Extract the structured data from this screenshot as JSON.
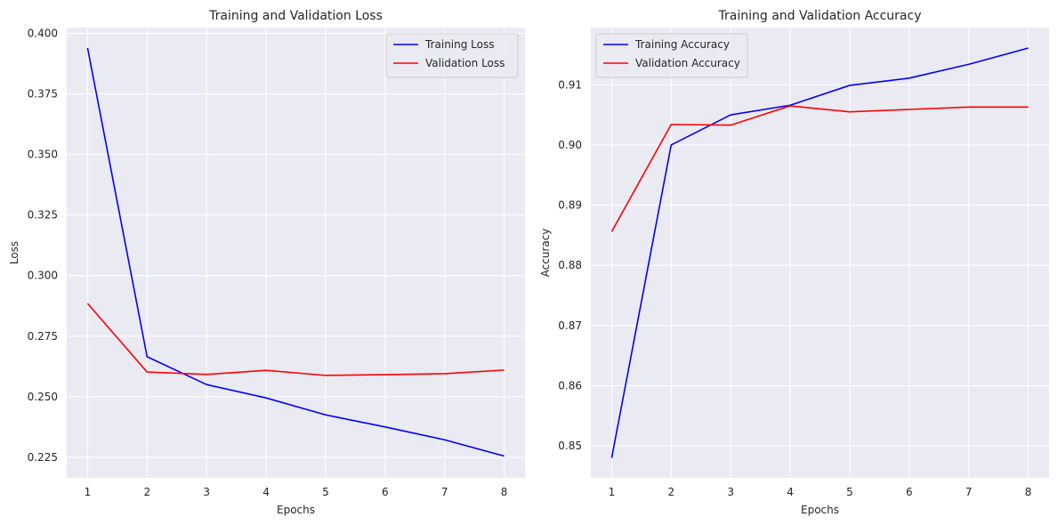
{
  "chart_data": [
    {
      "type": "line",
      "title": "Training and Validation Loss",
      "xlabel": "Epochs",
      "ylabel": "Loss",
      "x": [
        1,
        2,
        3,
        4,
        5,
        6,
        7,
        8
      ],
      "xticks": [
        "1",
        "2",
        "3",
        "4",
        "5",
        "6",
        "7",
        "8"
      ],
      "yticks": [
        "0.225",
        "0.250",
        "0.275",
        "0.300",
        "0.325",
        "0.350",
        "0.375",
        "0.400"
      ],
      "xlim": [
        0.65,
        8.35
      ],
      "ylim": [
        0.2165,
        0.4024
      ],
      "grid": true,
      "legend": "top-right",
      "series": [
        {
          "name": "Training Loss",
          "color": "#0000ff",
          "values": [
            0.394,
            0.2665,
            0.255,
            0.2495,
            0.2425,
            0.2375,
            0.2322,
            0.2255
          ]
        },
        {
          "name": "Validation Loss",
          "color": "#ff0000",
          "values": [
            0.2885,
            0.2602,
            0.2592,
            0.2609,
            0.2588,
            0.2591,
            0.2595,
            0.261
          ]
        }
      ]
    },
    {
      "type": "line",
      "title": "Training and Validation Accuracy",
      "xlabel": "Epochs",
      "ylabel": "Accuracy",
      "x": [
        1,
        2,
        3,
        4,
        5,
        6,
        7,
        8
      ],
      "xticks": [
        "1",
        "2",
        "3",
        "4",
        "5",
        "6",
        "7",
        "8"
      ],
      "yticks": [
        "0.85",
        "0.86",
        "0.87",
        "0.88",
        "0.89",
        "0.90",
        "0.91"
      ],
      "xlim": [
        0.65,
        8.35
      ],
      "ylim": [
        0.8447,
        0.9195
      ],
      "grid": true,
      "legend": "top-left",
      "series": [
        {
          "name": "Training Accuracy",
          "color": "#0000ff",
          "values": [
            0.848,
            0.9,
            0.905,
            0.9066,
            0.9099,
            0.9111,
            0.9134,
            0.9161
          ]
        },
        {
          "name": "Validation Accuracy",
          "color": "#ff0000",
          "values": [
            0.8856,
            0.9034,
            0.9033,
            0.9065,
            0.9055,
            0.9059,
            0.9063,
            0.9063
          ]
        }
      ]
    }
  ]
}
